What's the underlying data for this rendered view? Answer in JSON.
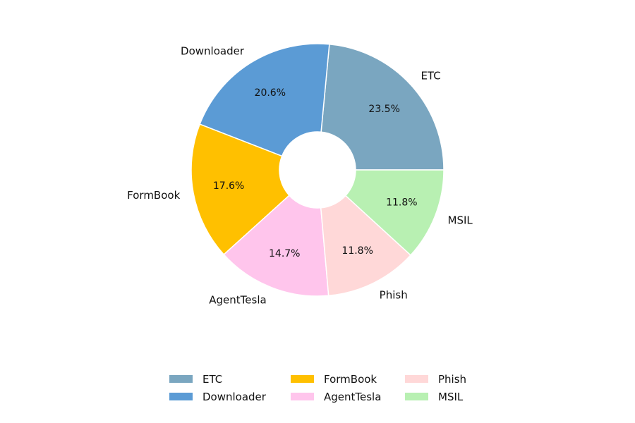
{
  "chart_data": {
    "type": "pie",
    "variant": "donut",
    "categories": [
      "ETC",
      "Downloader",
      "FormBook",
      "AgentTesla",
      "Phish",
      "MSIL"
    ],
    "values": [
      23.5,
      20.6,
      17.6,
      14.7,
      11.8,
      11.8
    ],
    "value_labels": [
      "23.5%",
      "20.6%",
      "17.6%",
      "14.7%",
      "11.8%",
      "11.8%"
    ],
    "colors": [
      "#7aa6c0",
      "#5b9bd5",
      "#ffc000",
      "#ffc5ec",
      "#ffd8d8",
      "#b8f0b2"
    ],
    "title": "",
    "legend": {
      "placement": "bottom",
      "columns": 3,
      "items": [
        "ETC",
        "Downloader",
        "FormBook",
        "AgentTesla",
        "Phish",
        "MSIL"
      ]
    }
  }
}
